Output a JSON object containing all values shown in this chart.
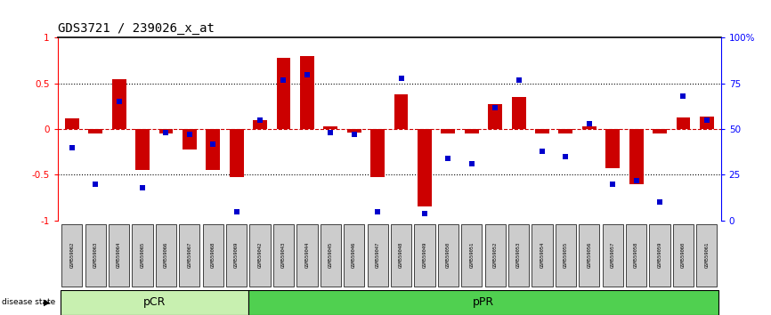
{
  "title": "GDS3721 / 239026_x_at",
  "samples": [
    "GSM559062",
    "GSM559063",
    "GSM559064",
    "GSM559065",
    "GSM559066",
    "GSM559067",
    "GSM559068",
    "GSM559069",
    "GSM559042",
    "GSM559043",
    "GSM559044",
    "GSM559045",
    "GSM559046",
    "GSM559047",
    "GSM559048",
    "GSM559049",
    "GSM559050",
    "GSM559051",
    "GSM559052",
    "GSM559053",
    "GSM559054",
    "GSM559055",
    "GSM559056",
    "GSM559057",
    "GSM559058",
    "GSM559059",
    "GSM559060",
    "GSM559061"
  ],
  "transformed_count": [
    0.12,
    -0.05,
    0.55,
    -0.45,
    -0.05,
    -0.22,
    -0.45,
    -0.52,
    0.1,
    0.78,
    0.8,
    0.03,
    -0.04,
    -0.52,
    0.38,
    -0.85,
    -0.05,
    -0.05,
    0.27,
    0.35,
    -0.05,
    -0.05,
    0.03,
    -0.43,
    -0.6,
    -0.05,
    0.13,
    0.14
  ],
  "percentile_rank": [
    40,
    20,
    65,
    18,
    48,
    47,
    42,
    5,
    55,
    77,
    80,
    48,
    47,
    5,
    78,
    4,
    34,
    31,
    62,
    77,
    38,
    35,
    53,
    20,
    22,
    10,
    68,
    55
  ],
  "group_sizes": [
    8,
    20
  ],
  "group_labels": [
    "pCR",
    "pPR"
  ],
  "pcr_color": "#c8f0b0",
  "ppr_color": "#50d050",
  "bar_color": "#cc0000",
  "dot_color": "#0000cc",
  "zero_line_color": "#cc0000",
  "ylim": [
    -1,
    1
  ],
  "right_yticks": [
    0,
    25,
    50,
    75,
    100
  ],
  "right_yticklabels": [
    "0",
    "25",
    "50",
    "75",
    "100%"
  ],
  "left_yticks": [
    -1,
    -0.5,
    0,
    0.5,
    1
  ],
  "left_yticklabels": [
    "-1",
    "-0.5",
    "0",
    "0.5",
    "1"
  ]
}
